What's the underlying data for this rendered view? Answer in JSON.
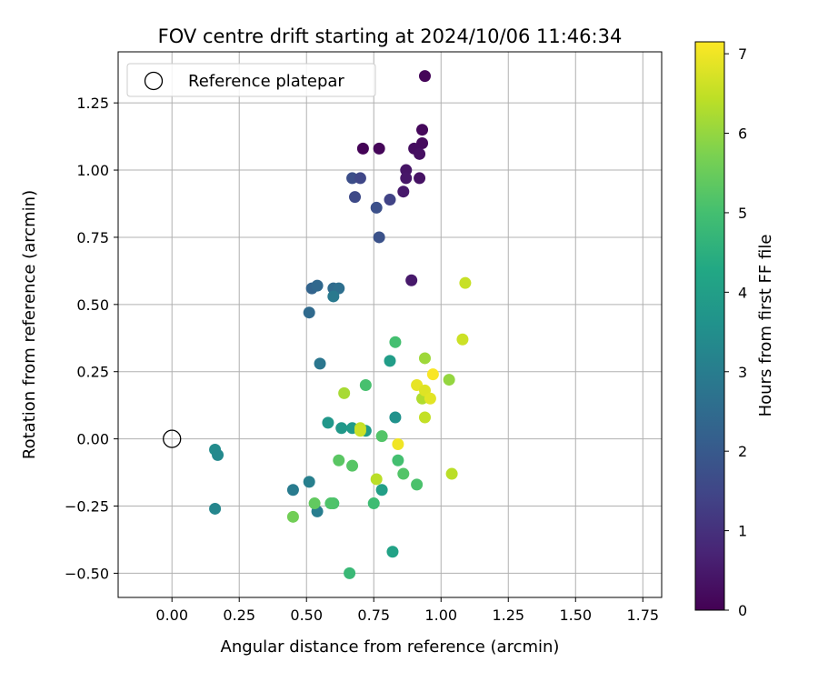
{
  "chart_data": {
    "type": "scatter",
    "title": "FOV centre drift starting at 2024/10/06 11:46:34",
    "xlabel": "Angular distance from reference (arcmin)",
    "ylabel": "Rotation from reference (arcmin)",
    "xlim": [
      -0.2,
      1.82
    ],
    "ylim": [
      -0.59,
      1.44
    ],
    "xticks": [
      0.0,
      0.25,
      0.5,
      0.75,
      1.0,
      1.25,
      1.5,
      1.75
    ],
    "xtick_labels": [
      "0.00",
      "0.25",
      "0.50",
      "0.75",
      "1.00",
      "1.25",
      "1.50",
      "1.75"
    ],
    "yticks": [
      -0.5,
      -0.25,
      0.0,
      0.25,
      0.5,
      0.75,
      1.0,
      1.25
    ],
    "ytick_labels": [
      "−0.50",
      "−0.25",
      "0.00",
      "0.25",
      "0.50",
      "0.75",
      "1.00",
      "1.25"
    ],
    "grid": true,
    "legend": {
      "placement": "upper-left",
      "entries": [
        "Reference platepar"
      ]
    },
    "colorbar": {
      "label": "Hours from first FF file",
      "range": [
        0,
        7.15
      ],
      "ticks": [
        0,
        1,
        2,
        3,
        4,
        5,
        6,
        7
      ],
      "tick_labels": [
        "0",
        "1",
        "2",
        "3",
        "4",
        "5",
        "6",
        "7"
      ],
      "colormap": "viridis"
    },
    "reference_point": {
      "x": 0.0,
      "y": 0.0
    },
    "points": [
      {
        "x": 0.94,
        "y": 1.35,
        "c": 0.1
      },
      {
        "x": 0.93,
        "y": 1.15,
        "c": 0.15
      },
      {
        "x": 0.93,
        "y": 1.1,
        "c": 0.2
      },
      {
        "x": 0.9,
        "y": 1.08,
        "c": 0.25
      },
      {
        "x": 0.92,
        "y": 1.06,
        "c": 0.3
      },
      {
        "x": 0.71,
        "y": 1.08,
        "c": 0.05
      },
      {
        "x": 0.77,
        "y": 1.08,
        "c": 0.1
      },
      {
        "x": 0.87,
        "y": 1.0,
        "c": 0.4
      },
      {
        "x": 0.87,
        "y": 0.97,
        "c": 0.45
      },
      {
        "x": 0.92,
        "y": 0.97,
        "c": 0.35
      },
      {
        "x": 0.86,
        "y": 0.92,
        "c": 0.5
      },
      {
        "x": 0.89,
        "y": 0.59,
        "c": 0.5
      },
      {
        "x": 0.67,
        "y": 0.97,
        "c": 1.7
      },
      {
        "x": 0.7,
        "y": 0.97,
        "c": 1.5
      },
      {
        "x": 0.68,
        "y": 0.9,
        "c": 1.6
      },
      {
        "x": 0.81,
        "y": 0.89,
        "c": 1.4
      },
      {
        "x": 0.76,
        "y": 0.86,
        "c": 1.75
      },
      {
        "x": 0.77,
        "y": 0.75,
        "c": 1.8
      },
      {
        "x": 0.52,
        "y": 0.56,
        "c": 2.3
      },
      {
        "x": 0.54,
        "y": 0.57,
        "c": 2.4
      },
      {
        "x": 0.6,
        "y": 0.56,
        "c": 2.5
      },
      {
        "x": 0.62,
        "y": 0.56,
        "c": 2.6
      },
      {
        "x": 0.6,
        "y": 0.53,
        "c": 2.9
      },
      {
        "x": 0.51,
        "y": 0.47,
        "c": 2.45
      },
      {
        "x": 0.55,
        "y": 0.28,
        "c": 2.8
      },
      {
        "x": 0.16,
        "y": -0.04,
        "c": 3.4
      },
      {
        "x": 0.17,
        "y": -0.06,
        "c": 3.35
      },
      {
        "x": 0.16,
        "y": -0.26,
        "c": 3.25
      },
      {
        "x": 0.45,
        "y": -0.19,
        "c": 2.95
      },
      {
        "x": 0.51,
        "y": -0.16,
        "c": 3.05
      },
      {
        "x": 0.54,
        "y": -0.27,
        "c": 3.0
      },
      {
        "x": 0.58,
        "y": 0.06,
        "c": 3.75
      },
      {
        "x": 0.63,
        "y": 0.04,
        "c": 3.8
      },
      {
        "x": 0.67,
        "y": 0.04,
        "c": 3.85
      },
      {
        "x": 0.72,
        "y": 0.03,
        "c": 3.9
      },
      {
        "x": 0.7,
        "y": 0.04,
        "c": 6.5
      },
      {
        "x": 0.7,
        "y": 0.03,
        "c": 6.6
      },
      {
        "x": 0.78,
        "y": 0.01,
        "c": 5.2
      },
      {
        "x": 0.83,
        "y": 0.08,
        "c": 3.6
      },
      {
        "x": 0.81,
        "y": 0.29,
        "c": 3.95
      },
      {
        "x": 0.83,
        "y": 0.36,
        "c": 5.0
      },
      {
        "x": 0.72,
        "y": 0.2,
        "c": 5.05
      },
      {
        "x": 0.64,
        "y": 0.17,
        "c": 6.2
      },
      {
        "x": 0.62,
        "y": -0.08,
        "c": 5.3
      },
      {
        "x": 0.67,
        "y": -0.1,
        "c": 5.25
      },
      {
        "x": 0.76,
        "y": -0.15,
        "c": 6.4
      },
      {
        "x": 0.78,
        "y": -0.19,
        "c": 4.0
      },
      {
        "x": 0.75,
        "y": -0.24,
        "c": 4.9
      },
      {
        "x": 0.6,
        "y": -0.24,
        "c": 5.1
      },
      {
        "x": 0.59,
        "y": -0.24,
        "c": 5.15
      },
      {
        "x": 0.53,
        "y": -0.24,
        "c": 5.4
      },
      {
        "x": 0.45,
        "y": -0.29,
        "c": 5.6
      },
      {
        "x": 0.66,
        "y": -0.5,
        "c": 4.8
      },
      {
        "x": 0.82,
        "y": -0.42,
        "c": 4.1
      },
      {
        "x": 0.84,
        "y": -0.08,
        "c": 5.0
      },
      {
        "x": 0.86,
        "y": -0.13,
        "c": 5.2
      },
      {
        "x": 0.91,
        "y": -0.17,
        "c": 5.1
      },
      {
        "x": 0.84,
        "y": -0.02,
        "c": 7.0
      },
      {
        "x": 0.94,
        "y": 0.3,
        "c": 6.1
      },
      {
        "x": 0.91,
        "y": 0.2,
        "c": 6.9
      },
      {
        "x": 0.93,
        "y": 0.15,
        "c": 6.3
      },
      {
        "x": 0.94,
        "y": 0.18,
        "c": 6.8
      },
      {
        "x": 0.96,
        "y": 0.15,
        "c": 6.85
      },
      {
        "x": 0.94,
        "y": 0.08,
        "c": 6.5
      },
      {
        "x": 0.97,
        "y": 0.24,
        "c": 7.1
      },
      {
        "x": 1.03,
        "y": 0.22,
        "c": 6.0
      },
      {
        "x": 1.09,
        "y": 0.58,
        "c": 6.55
      },
      {
        "x": 1.08,
        "y": 0.37,
        "c": 6.6
      },
      {
        "x": 1.04,
        "y": -0.13,
        "c": 6.4
      }
    ]
  }
}
